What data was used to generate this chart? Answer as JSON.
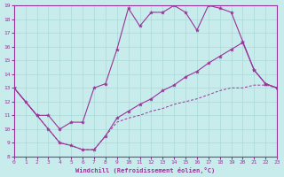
{
  "xlabel": "Windchill (Refroidissement éolien,°C)",
  "xlim": [
    0,
    23
  ],
  "ylim": [
    8,
    19
  ],
  "xticks": [
    0,
    1,
    2,
    3,
    4,
    5,
    6,
    7,
    8,
    9,
    10,
    11,
    12,
    13,
    14,
    15,
    16,
    17,
    18,
    19,
    20,
    21,
    22,
    23
  ],
  "yticks": [
    8,
    9,
    10,
    11,
    12,
    13,
    14,
    15,
    16,
    17,
    18,
    19
  ],
  "bg_color": "#c8ecec",
  "line_color": "#993399",
  "grid_color": "#aad8d8",
  "line_top_x": [
    0,
    1,
    2,
    3,
    4,
    5,
    6,
    7,
    8,
    9,
    10,
    11,
    12,
    13,
    14,
    15,
    16,
    17,
    18,
    19,
    20,
    21,
    22,
    23
  ],
  "line_top_y": [
    13,
    12,
    11,
    11,
    10,
    10.5,
    10.5,
    13,
    13.3,
    15.8,
    18.8,
    17.5,
    18.5,
    18.5,
    19.0,
    18.5,
    17.2,
    19.0,
    18.8,
    18.5,
    16.4,
    14.3,
    13.3,
    13
  ],
  "line_bot_x": [
    0,
    1,
    2,
    3,
    4,
    5,
    6,
    7,
    8,
    9,
    10,
    11,
    12,
    13,
    14,
    15,
    16,
    17,
    18,
    19,
    20,
    21,
    22,
    23
  ],
  "line_bot_y": [
    13,
    12,
    11,
    10,
    9,
    8.8,
    8.5,
    8.5,
    9.5,
    10.5,
    10.8,
    11,
    11.3,
    11.5,
    11.8,
    12,
    12.2,
    12.5,
    12.8,
    13,
    13,
    13.2,
    13.2,
    13
  ],
  "line_mid_x": [
    0,
    2,
    3,
    4,
    5,
    6,
    7,
    8,
    9,
    10,
    11,
    12,
    13,
    14,
    15,
    16,
    17,
    18,
    19,
    20,
    21,
    22,
    23
  ],
  "line_mid_y": [
    13,
    11,
    10,
    9,
    8.8,
    8.5,
    8.5,
    9.5,
    10.8,
    11.3,
    11.8,
    12.2,
    12.8,
    13.2,
    13.8,
    14.2,
    14.8,
    15.3,
    15.8,
    16.3,
    14.3,
    13.3,
    13
  ]
}
